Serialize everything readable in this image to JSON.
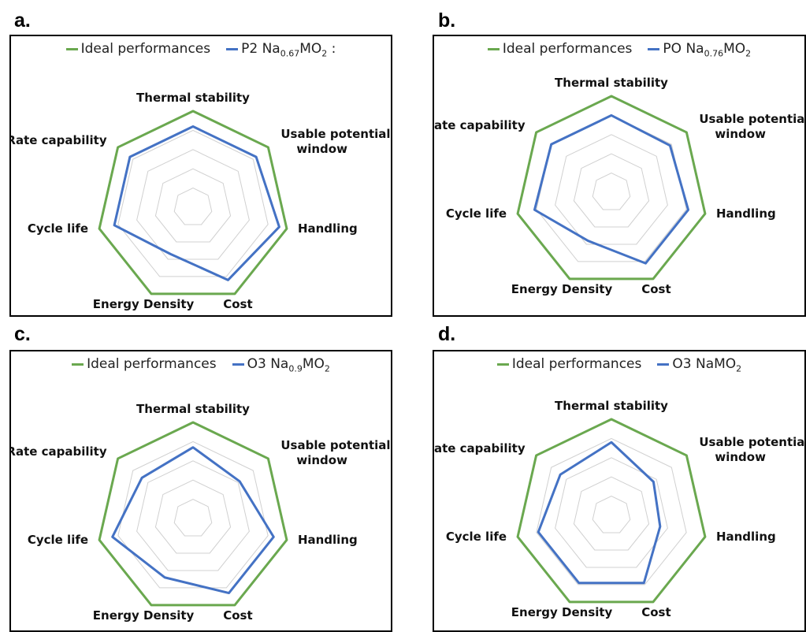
{
  "panels": [
    {
      "letter": "a.",
      "legend": [
        {
          "text": "Ideal performances",
          "color": "#6aa84f"
        },
        {
          "text": "P2 Na",
          "sub": "0.67",
          "after": "MO",
          "sub2": "2",
          "tail": " :",
          "color": "#4472c4"
        }
      ]
    },
    {
      "letter": "b.",
      "legend": [
        {
          "text": "Ideal performances",
          "color": "#6aa84f"
        },
        {
          "text": "PO Na",
          "sub": "0.76",
          "after": "MO",
          "sub2": "2",
          "tail": "",
          "color": "#4472c4"
        }
      ]
    },
    {
      "letter": "c.",
      "legend": [
        {
          "text": "Ideal performances",
          "color": "#6aa84f"
        },
        {
          "text": "O3 Na",
          "sub": "0.9",
          "after": "MO",
          "sub2": "2",
          "tail": "",
          "color": "#4472c4"
        }
      ]
    },
    {
      "letter": "d.",
      "legend": [
        {
          "text": "Ideal performances",
          "color": "#6aa84f"
        },
        {
          "text": "O3 NaMO",
          "sub": "",
          "after": "",
          "sub2": "2",
          "tail": "",
          "color": "#4472c4"
        }
      ]
    }
  ],
  "chart_data": [
    {
      "type": "radar",
      "axes": [
        "Thermal stability",
        "Usable potential window",
        "Handling",
        "Cost",
        "Energy Density",
        "Cycle life",
        "Rate capability"
      ],
      "range": [
        0,
        5
      ],
      "series": [
        {
          "name": "Ideal performances",
          "color": "#6aa84f",
          "values": [
            5,
            5,
            5,
            5,
            5,
            5,
            5
          ]
        },
        {
          "name": "P2 Na0.67MO2",
          "color": "#4472c4",
          "values": [
            4.2,
            4.2,
            4.6,
            4.2,
            2.7,
            4.2,
            4.2
          ]
        }
      ],
      "grid": true
    },
    {
      "type": "radar",
      "axes": [
        "Thermal stability",
        "Usable potential window",
        "Handling",
        "Cost",
        "Energy Density",
        "Cycle life",
        "Rate capability"
      ],
      "range": [
        0,
        5
      ],
      "series": [
        {
          "name": "Ideal performances",
          "color": "#6aa84f",
          "values": [
            5,
            5,
            5,
            5,
            5,
            5,
            5
          ]
        },
        {
          "name": "PO Na0.76MO2",
          "color": "#4472c4",
          "values": [
            4.0,
            3.9,
            4.1,
            4.1,
            2.8,
            4.1,
            4.0
          ]
        }
      ],
      "grid": true
    },
    {
      "type": "radar",
      "axes": [
        "Thermal stability",
        "Usable potential window",
        "Handling",
        "Cost",
        "Energy Density",
        "Cycle life",
        "Rate capability"
      ],
      "range": [
        0,
        5
      ],
      "series": [
        {
          "name": "Ideal performances",
          "color": "#6aa84f",
          "values": [
            5,
            5,
            5,
            5,
            5,
            5,
            5
          ]
        },
        {
          "name": "O3 Na0.9MO2",
          "color": "#4472c4",
          "values": [
            3.7,
            3.1,
            4.3,
            4.3,
            3.4,
            4.3,
            3.4
          ]
        }
      ],
      "grid": true
    },
    {
      "type": "radar",
      "axes": [
        "Thermal stability",
        "Usable potential window",
        "Handling",
        "Cost",
        "Energy Density",
        "Cycle life",
        "Rate capability"
      ],
      "range": [
        0,
        5
      ],
      "series": [
        {
          "name": "Ideal performances",
          "color": "#6aa84f",
          "values": [
            5,
            5,
            5,
            5,
            5,
            5,
            5
          ]
        },
        {
          "name": "O3 NaMO2",
          "color": "#4472c4",
          "values": [
            3.8,
            2.8,
            2.6,
            3.9,
            3.9,
            3.9,
            3.4
          ]
        }
      ],
      "grid": true
    }
  ]
}
